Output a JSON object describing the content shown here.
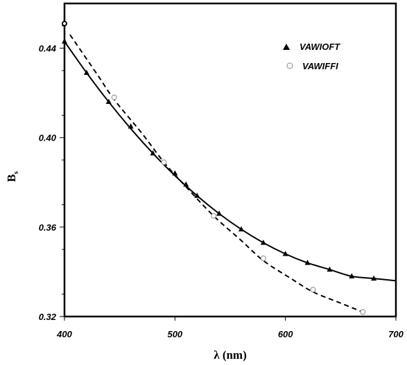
{
  "chart_data": {
    "type": "line",
    "xlabel": "λ (nm)",
    "ylabel": "B",
    "ylabel_sub": "s",
    "xlim": [
      400,
      700
    ],
    "ylim": [
      0.32,
      0.46
    ],
    "xticks": [
      400,
      500,
      600,
      700
    ],
    "xtick_labels": [
      "400",
      "500",
      "600",
      "700"
    ],
    "yticks": [
      0.32,
      0.36,
      0.4,
      0.44
    ],
    "ytick_labels": [
      "0.32",
      "0.36",
      "0.40",
      "0.44"
    ],
    "grid": false,
    "legend_position": "top-right",
    "series": [
      {
        "name": "VAWIOFT",
        "marker": "filled-triangle",
        "line": "solid",
        "color": "#000000",
        "x": [
          400,
          420,
          440,
          460,
          480,
          500,
          510,
          520,
          540,
          560,
          580,
          600,
          620,
          640,
          660,
          680
        ],
        "y": [
          0.443,
          0.429,
          0.416,
          0.405,
          0.393,
          0.384,
          0.379,
          0.374,
          0.366,
          0.359,
          0.353,
          0.348,
          0.344,
          0.341,
          0.338,
          0.337
        ],
        "curve_x": [
          400,
          420,
          440,
          460,
          480,
          500,
          520,
          540,
          560,
          580,
          600,
          620,
          640,
          660,
          680,
          700
        ],
        "curve_y": [
          0.443,
          0.429,
          0.416,
          0.404,
          0.393,
          0.383,
          0.374,
          0.366,
          0.359,
          0.353,
          0.348,
          0.344,
          0.341,
          0.338,
          0.337,
          0.336
        ]
      },
      {
        "name": "VAWIFFI",
        "marker": "open-circle",
        "line": "dashed",
        "color": "#000000",
        "x": [
          400,
          445,
          490,
          535,
          580,
          625,
          670
        ],
        "y": [
          0.451,
          0.418,
          0.389,
          0.365,
          0.346,
          0.332,
          0.322
        ],
        "curve_x": [
          405,
          430,
          445,
          470,
          490,
          510,
          535,
          560,
          580,
          605,
          625,
          650,
          670
        ],
        "curve_y": [
          0.446,
          0.428,
          0.417,
          0.402,
          0.389,
          0.378,
          0.365,
          0.354,
          0.345,
          0.337,
          0.331,
          0.326,
          0.322
        ]
      }
    ]
  }
}
